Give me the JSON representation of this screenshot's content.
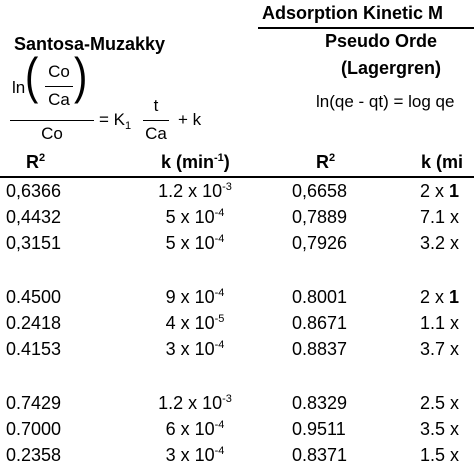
{
  "title": "Adsorption Kinetic M",
  "models": {
    "left": {
      "name": "Santosa-Muzakky",
      "eq": {
        "ln": "ln",
        "co_top": "Co",
        "ca": "Ca",
        "co_bottom": "Co",
        "equals_k": "= K",
        "k_sub": "1",
        "t": "t",
        "ca_t": "Ca",
        "plus_k": "+ k"
      }
    },
    "right": {
      "name": "Pseudo Orde",
      "subname": "(Lagergren)",
      "eq": "ln(qe - qt) = log qe"
    }
  },
  "columns": {
    "r2_left": "R",
    "r2_sup": "2",
    "k_left": "k (min",
    "k_sup": "-1",
    "k_close": ")",
    "r2_right": "R",
    "k_right": "k (mi"
  },
  "groups": [
    {
      "rows": [
        {
          "r2_a": "0,6366",
          "k_a_base": "1.2 x 10",
          "k_a_exp": "-3",
          "r2_b": "0,6658",
          "k_b": "2 x 1"
        },
        {
          "r2_a": "0,4432",
          "k_a_base": "5 x 10",
          "k_a_exp": "-4",
          "r2_b": "0,7889",
          "k_b": "7.1 x"
        },
        {
          "r2_a": "0,3151",
          "k_a_base": "5 x 10",
          "k_a_exp": "-4",
          "r2_b": "0,7926",
          "k_b": "3.2 x"
        }
      ]
    },
    {
      "rows": [
        {
          "r2_a": "0.4500",
          "k_a_base": "9 x 10",
          "k_a_exp": "-4",
          "r2_b": "0.8001",
          "k_b": "2 x 1"
        },
        {
          "r2_a": "0.2418",
          "k_a_base": "4 x 10",
          "k_a_exp": "-5",
          "r2_b": "0.8671",
          "k_b": "1.1 x"
        },
        {
          "r2_a": "0.4153",
          "k_a_base": "3 x 10",
          "k_a_exp": "-4",
          "r2_b": "0.8837",
          "k_b": "3.7 x"
        }
      ]
    },
    {
      "rows": [
        {
          "r2_a": "0.7429",
          "k_a_base": "1.2 x 10",
          "k_a_exp": "-3",
          "r2_b": "0.8329",
          "k_b": "2.5 x"
        },
        {
          "r2_a": "0.7000",
          "k_a_base": "6 x 10",
          "k_a_exp": "-4",
          "r2_b": "0.9511",
          "k_b": "3.5 x"
        },
        {
          "r2_a": "0.2358",
          "k_a_base": "3 x 10",
          "k_a_exp": "-4",
          "r2_b": "0.8371",
          "k_b": "1.5 x"
        }
      ]
    }
  ]
}
